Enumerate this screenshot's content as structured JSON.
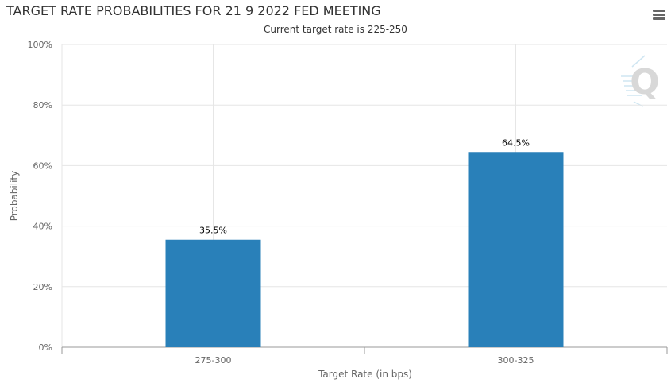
{
  "header": {
    "title": "TARGET RATE PROBABILITIES FOR 21 9 2022 FED MEETING",
    "subtitle": "Current target rate is 225-250",
    "menu_icon": "hamburger-menu-icon"
  },
  "watermark": {
    "text": "Q",
    "icon": "quikstrike-logo-icon"
  },
  "colors": {
    "bar": "#2980b9",
    "grid": "#e6e6e6",
    "axis": "#999999",
    "text": "#333333",
    "label": "#666666"
  },
  "chart_data": {
    "type": "bar",
    "title": "TARGET RATE PROBABILITIES FOR 21 9 2022 FED MEETING",
    "subtitle": "Current target rate is 225-250",
    "categories": [
      "275-300",
      "300-325"
    ],
    "values": [
      35.5,
      64.5
    ],
    "data_labels": [
      "35.5%",
      "64.5%"
    ],
    "xlabel": "Target Rate (in bps)",
    "ylabel": "Probability",
    "ylim": [
      0,
      100
    ],
    "yticks": [
      0,
      20,
      40,
      60,
      80,
      100
    ],
    "ytick_labels": [
      "0%",
      "20%",
      "40%",
      "60%",
      "80%",
      "100%"
    ],
    "grid": true,
    "legend": "none"
  }
}
